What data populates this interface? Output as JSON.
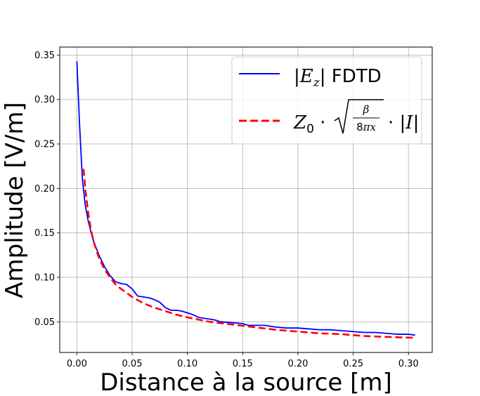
{
  "chart_data": {
    "type": "line",
    "xlabel": "Distance à la source [m]",
    "ylabel": "Amplitude [V/m]",
    "xlim": [
      -0.0155,
      0.3215
    ],
    "ylim": [
      0.0155,
      0.359
    ],
    "xticks": [
      0.0,
      0.05,
      0.1,
      0.15,
      0.2,
      0.25,
      0.3
    ],
    "xtick_labels": [
      "0.00",
      "0.05",
      "0.10",
      "0.15",
      "0.20",
      "0.25",
      "0.30"
    ],
    "yticks": [
      0.05,
      0.1,
      0.15,
      0.2,
      0.25,
      0.3,
      0.35
    ],
    "ytick_labels": [
      "0.05",
      "0.10",
      "0.15",
      "0.20",
      "0.25",
      "0.30",
      "0.35"
    ],
    "grid": true,
    "legend_position": "top-right",
    "series": [
      {
        "name": "|E_z| FDTD",
        "color": "#0000ff",
        "style": "solid",
        "x": [
          0.0,
          0.0025,
          0.005,
          0.0075,
          0.01,
          0.0125,
          0.015,
          0.02,
          0.025,
          0.03,
          0.035,
          0.04,
          0.045,
          0.05,
          0.055,
          0.06,
          0.065,
          0.07,
          0.075,
          0.08,
          0.085,
          0.09,
          0.095,
          0.1,
          0.105,
          0.11,
          0.115,
          0.12,
          0.125,
          0.13,
          0.14,
          0.15,
          0.155,
          0.16,
          0.17,
          0.18,
          0.19,
          0.2,
          0.21,
          0.22,
          0.23,
          0.24,
          0.25,
          0.26,
          0.27,
          0.28,
          0.29,
          0.3,
          0.306
        ],
        "y": [
          0.343,
          0.27,
          0.21,
          0.182,
          0.165,
          0.152,
          0.141,
          0.125,
          0.112,
          0.102,
          0.095,
          0.093,
          0.092,
          0.087,
          0.079,
          0.078,
          0.077,
          0.075,
          0.072,
          0.066,
          0.063,
          0.063,
          0.062,
          0.06,
          0.058,
          0.055,
          0.054,
          0.053,
          0.052,
          0.05,
          0.049,
          0.048,
          0.046,
          0.046,
          0.046,
          0.044,
          0.043,
          0.043,
          0.042,
          0.041,
          0.041,
          0.04,
          0.039,
          0.038,
          0.038,
          0.037,
          0.036,
          0.036,
          0.035
        ]
      },
      {
        "name": "Z_0 · sqrt(β/(8πx)) · |I|",
        "color": "#ff0000",
        "style": "dashed",
        "x": [
          0.006,
          0.008,
          0.01,
          0.0125,
          0.015,
          0.0175,
          0.02,
          0.025,
          0.03,
          0.035,
          0.04,
          0.05,
          0.06,
          0.07,
          0.08,
          0.09,
          0.1,
          0.12,
          0.14,
          0.16,
          0.18,
          0.2,
          0.22,
          0.24,
          0.26,
          0.28,
          0.306
        ],
        "y": [
          0.222,
          0.195,
          0.175,
          0.155,
          0.141,
          0.131,
          0.122,
          0.109,
          0.1,
          0.092,
          0.087,
          0.078,
          0.071,
          0.066,
          0.062,
          0.058,
          0.055,
          0.05,
          0.047,
          0.044,
          0.041,
          0.039,
          0.037,
          0.036,
          0.034,
          0.033,
          0.032
        ]
      }
    ]
  }
}
